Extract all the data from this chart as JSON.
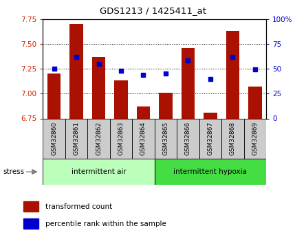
{
  "title": "GDS1213 / 1425411_at",
  "samples": [
    "GSM32860",
    "GSM32861",
    "GSM32862",
    "GSM32863",
    "GSM32864",
    "GSM32865",
    "GSM32866",
    "GSM32867",
    "GSM32868",
    "GSM32869"
  ],
  "bar_values": [
    7.2,
    7.7,
    7.37,
    7.13,
    6.87,
    7.01,
    7.46,
    6.81,
    7.63,
    7.07
  ],
  "dot_values": [
    50,
    62,
    55,
    48,
    44,
    45,
    58,
    40,
    62,
    49
  ],
  "bar_color": "#aa1100",
  "dot_color": "#0000cc",
  "ylim_left": [
    6.75,
    7.75
  ],
  "ylim_right": [
    0,
    100
  ],
  "yticks_left": [
    6.75,
    7.0,
    7.25,
    7.5,
    7.75
  ],
  "yticks_right": [
    0,
    25,
    50,
    75,
    100
  ],
  "hlines": [
    7.0,
    7.25,
    7.5
  ],
  "group1_label": "intermittent air",
  "group2_label": "intermittent hypoxia",
  "group1_color": "#bbffbb",
  "group2_color": "#44dd44",
  "stress_label": "stress",
  "legend_bar": "transformed count",
  "legend_dot": "percentile rank within the sample",
  "left_tick_color": "#cc2200",
  "right_tick_color": "#0000cc",
  "bar_bottom": 6.75,
  "xtick_bg_color": "#cccccc",
  "plot_bg": "white",
  "fig_bg": "white"
}
